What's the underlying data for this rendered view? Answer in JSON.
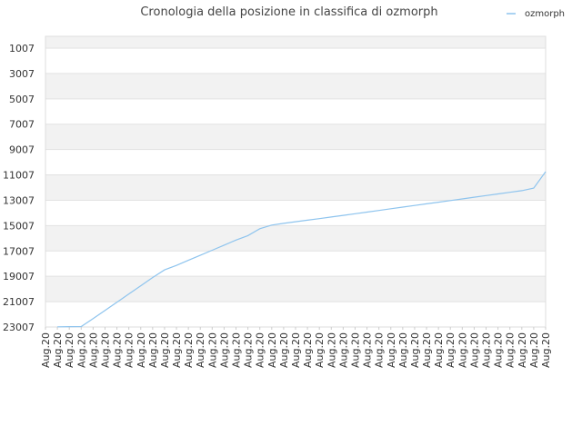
{
  "chart_data": {
    "type": "line",
    "title": "Cronologia della posizione in classifica di ozmorph",
    "xlabel": "",
    "ylabel": "",
    "y_inverted": true,
    "ylim": [
      1007,
      23007
    ],
    "yticks": [
      1007,
      3007,
      5007,
      7007,
      9007,
      11007,
      13007,
      15007,
      17007,
      19007,
      21007,
      23007
    ],
    "ytick_labels": [
      "1007",
      "3007",
      "5007",
      "7007",
      "9007",
      "11007",
      "13007",
      "15007",
      "17007",
      "19007",
      "21007",
      "23007"
    ],
    "grid": true,
    "legend_position": "top-right",
    "series_color": "#8ec4ee",
    "band_color": "#f2f2f2",
    "categories": [
      "Aug.20",
      "Aug.20",
      "Aug.20",
      "Aug.20",
      "Aug.20",
      "Aug.20",
      "Aug.20",
      "Aug.20",
      "Aug.20",
      "Aug.20",
      "Aug.20",
      "Aug.20",
      "Aug.20",
      "Aug.20",
      "Aug.20",
      "Aug.20",
      "Aug.20",
      "Aug.20",
      "Aug.20",
      "Aug.20",
      "Aug.20",
      "Aug.20",
      "Aug.20",
      "Aug.20",
      "Aug.20",
      "Aug.20",
      "Aug.20",
      "Aug.20",
      "Aug.20",
      "Aug.20",
      "Aug.20",
      "Aug.20",
      "Aug.20",
      "Aug.20",
      "Aug.20",
      "Aug.20",
      "Aug.20",
      "Aug.20",
      "Aug.20",
      "Aug.20",
      "Aug.20",
      "Aug.20",
      "Aug.20"
    ],
    "series": [
      {
        "name": "ozmorph",
        "values": [
          null,
          22990,
          22980,
          22970,
          22350,
          21700,
          21050,
          20400,
          19750,
          19100,
          18500,
          18150,
          17750,
          17350,
          16950,
          16550,
          16150,
          15800,
          15250,
          14970,
          14830,
          14700,
          14580,
          14460,
          14330,
          14200,
          14070,
          13940,
          13810,
          13680,
          13550,
          13420,
          13290,
          13160,
          13030,
          12900,
          12770,
          12640,
          12510,
          12380,
          12250,
          12050,
          10750
        ]
      }
    ]
  }
}
